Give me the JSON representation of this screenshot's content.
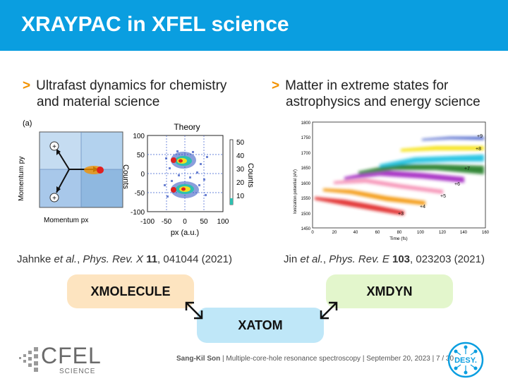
{
  "title": "XRAYPAC in XFEL science",
  "left": {
    "bullet_line1": "Ultrafast dynamics for chemistry",
    "bullet_line2": "and material science",
    "panel_label": "(a)",
    "momentum_y": "Momentum py",
    "momentum_x": "Momentum px",
    "theory_label": "Theory",
    "counts_left": "Counts",
    "counts_right": "Counts",
    "x_axis_label": "px (a.u.)",
    "y_ticks": [
      "100",
      "50",
      "0",
      "-50",
      "-100"
    ],
    "x_ticks": [
      "-100",
      "-50",
      "0",
      "50",
      "100"
    ],
    "cbar_ticks": [
      "50",
      "40",
      "30",
      "20",
      "10"
    ],
    "plus_sign": "+",
    "citation_authors": "Jahnke",
    "citation_etal": "et al.",
    "citation_journal": "Phys. Rev. X",
    "citation_volume": "11",
    "citation_rest": ", 041044 (2021)"
  },
  "right": {
    "bullet_line1": "Matter in extreme states for",
    "bullet_line2": "astrophysics and energy science",
    "y_label": "Ionization potential (eV)",
    "x_label": "Time (fs)",
    "y_ticks": [
      "1800",
      "1750",
      "1700",
      "1650",
      "1600",
      "1550",
      "1500",
      "1450"
    ],
    "x_ticks": [
      "0",
      "20",
      "40",
      "60",
      "80",
      "100",
      "120",
      "140",
      "160"
    ],
    "charge_labels": [
      "+3",
      "+4",
      "+5",
      "+6",
      "+7",
      "+8",
      "+9"
    ],
    "band_colors": [
      "#e02020",
      "#f39200",
      "#f58ab0",
      "#a020c0",
      "#1a7a20",
      "#18c0e0",
      "#f5e000",
      "#2040c0"
    ],
    "citation_authors": "Jin",
    "citation_etal": "et al.",
    "citation_journal": "Phys. Rev. E",
    "citation_volume": "103",
    "citation_rest": ", 023203 (2021)"
  },
  "boxes": {
    "xmolecule": "XMOLECULE",
    "xmdyn": "XMDYN",
    "xatom": "XATOM"
  },
  "footer": {
    "author": "Sang-Kil Son",
    "sep1": "|",
    "talk": "Multiple-core-hole resonance spectroscopy",
    "sep2": "|",
    "date": "September 20, 2023",
    "sep3": "|",
    "page": "7",
    "total": "/ 30"
  },
  "logos": {
    "cfel": "CFEL",
    "science": "SCIENCE",
    "desy": "DESY."
  },
  "colors": {
    "accent": "#0a9ee0",
    "bullet_arrow": "#f39200",
    "xmolecule_box": "#fde4c0",
    "xmdyn_box": "#e3f6cc",
    "xatom_box": "#bfe7f8"
  }
}
